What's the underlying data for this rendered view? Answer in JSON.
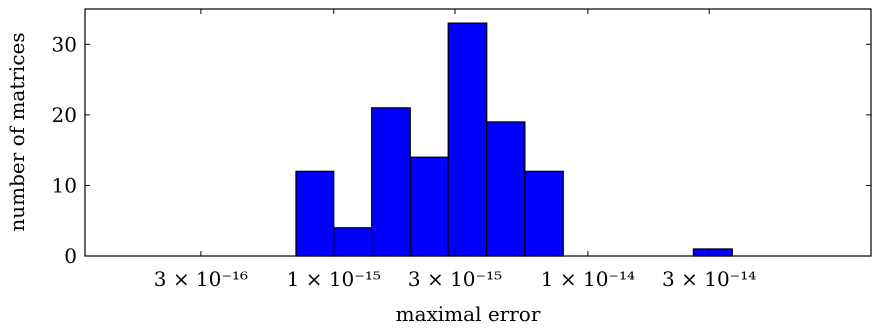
{
  "chart_data": {
    "type": "bar",
    "title": "",
    "xlabel": "maximal error",
    "ylabel": "number of matrices",
    "x_scale": "log",
    "x_ticks": [
      {
        "value": 3e-16,
        "label": "3 × 10⁻¹⁶"
      },
      {
        "value": 1e-15,
        "label": "1 × 10⁻¹⁵"
      },
      {
        "value": 3e-15,
        "label": "3 × 10⁻¹⁵"
      },
      {
        "value": 1e-14,
        "label": "1 × 10⁻¹⁴"
      },
      {
        "value": 3e-14,
        "label": "3 × 10⁻¹⁴"
      }
    ],
    "y_ticks": [
      0,
      10,
      20,
      30
    ],
    "ylim": [
      0,
      35
    ],
    "xlim": [
      1.05e-16,
      1.3e-13
    ],
    "bins": [
      {
        "x0": 7.1e-16,
        "x1": 1e-15,
        "value": 12
      },
      {
        "x0": 1e-15,
        "x1": 1.41e-15,
        "value": 4
      },
      {
        "x0": 1.41e-15,
        "x1": 2e-15,
        "value": 21
      },
      {
        "x0": 2e-15,
        "x1": 2.82e-15,
        "value": 14
      },
      {
        "x0": 2.82e-15,
        "x1": 4e-15,
        "value": 33
      },
      {
        "x0": 4e-15,
        "x1": 5.65e-15,
        "value": 19
      },
      {
        "x0": 5.65e-15,
        "x1": 8e-15,
        "value": 12
      },
      {
        "x0": 2.6e-14,
        "x1": 3.7e-14,
        "value": 1
      }
    ],
    "grid": false
  }
}
